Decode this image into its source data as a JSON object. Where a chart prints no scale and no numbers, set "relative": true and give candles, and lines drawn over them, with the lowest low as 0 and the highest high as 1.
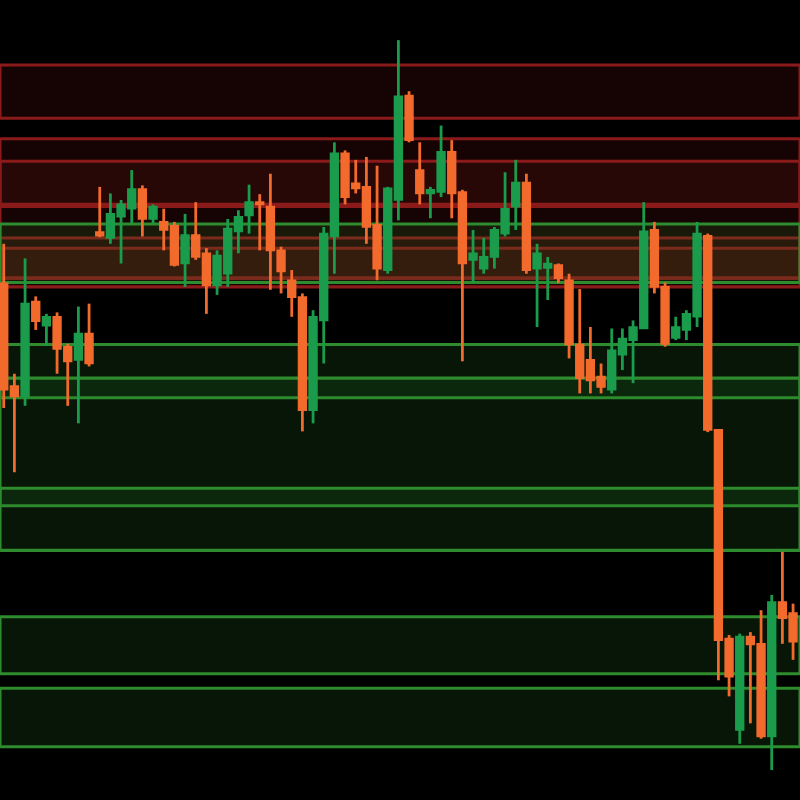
{
  "chart_data": {
    "type": "candlestick",
    "relative": true,
    "categories": [
      null,
      null,
      null,
      null,
      null,
      null,
      null,
      null,
      null,
      null,
      null,
      null,
      null,
      null,
      null,
      null,
      null,
      null,
      null,
      null,
      null,
      null,
      null,
      null,
      null,
      null,
      null,
      null,
      null,
      null,
      null,
      null,
      null,
      null,
      null,
      null,
      null,
      null,
      null,
      null,
      null,
      null,
      null,
      null,
      null,
      null,
      null,
      null,
      null,
      null,
      null,
      null,
      null,
      null,
      null,
      null,
      null,
      null,
      null,
      null,
      null,
      null,
      null,
      null,
      null,
      null,
      null,
      null,
      null,
      null,
      null,
      null,
      null,
      null,
      null
    ],
    "ohlc": [
      [
        0.667,
        0.721,
        0.496,
        0.521
      ],
      [
        0.526,
        0.543,
        0.408,
        0.512
      ],
      [
        0.512,
        0.701,
        0.499,
        0.639
      ],
      [
        0.642,
        0.649,
        0.603,
        0.615
      ],
      [
        0.609,
        0.625,
        0.581,
        0.621
      ],
      [
        0.621,
        0.627,
        0.543,
        0.577
      ],
      [
        0.58,
        0.584,
        0.499,
        0.56
      ],
      [
        0.562,
        0.635,
        0.475,
        0.598
      ],
      [
        0.598,
        0.639,
        0.553,
        0.557
      ],
      [
        0.737,
        0.799,
        0.73,
        0.732
      ],
      [
        0.729,
        0.79,
        0.721,
        0.762
      ],
      [
        0.758,
        0.781,
        0.694,
        0.775
      ],
      [
        0.769,
        0.822,
        0.749,
        0.796
      ],
      [
        0.796,
        0.801,
        0.731,
        0.755
      ],
      [
        0.755,
        0.775,
        0.749,
        0.772
      ],
      [
        0.751,
        0.769,
        0.712,
        0.74
      ],
      [
        0.746,
        0.751,
        0.69,
        0.692
      ],
      [
        0.694,
        0.762,
        0.662,
        0.733
      ],
      [
        0.733,
        0.778,
        0.699,
        0.703
      ],
      [
        0.708,
        0.715,
        0.625,
        0.664
      ],
      [
        0.664,
        0.712,
        0.651,
        0.705
      ],
      [
        0.68,
        0.755,
        0.662,
        0.742
      ],
      [
        0.738,
        0.767,
        0.708,
        0.758
      ],
      [
        0.76,
        0.802,
        0.735,
        0.778
      ],
      [
        0.778,
        0.789,
        0.712,
        0.775
      ],
      [
        0.772,
        0.817,
        0.658,
        0.712
      ],
      [
        0.712,
        0.717,
        0.653,
        0.683
      ],
      [
        0.671,
        0.685,
        0.621,
        0.648
      ],
      [
        0.648,
        0.653,
        0.464,
        0.493
      ],
      [
        0.493,
        0.63,
        0.475,
        0.621
      ],
      [
        0.616,
        0.744,
        0.557,
        0.735
      ],
      [
        0.731,
        0.86,
        0.68,
        0.845
      ],
      [
        0.845,
        0.849,
        0.775,
        0.785
      ],
      [
        0.804,
        0.836,
        0.79,
        0.797
      ],
      [
        0.799,
        0.84,
        0.721,
        0.744
      ],
      [
        0.747,
        0.828,
        0.671,
        0.687
      ],
      [
        0.685,
        0.799,
        0.68,
        0.797
      ],
      [
        0.781,
        1.0,
        0.753,
        0.923
      ],
      [
        0.924,
        0.93,
        0.86,
        0.863
      ],
      [
        0.822,
        0.86,
        0.775,
        0.79
      ],
      [
        0.79,
        0.799,
        0.756,
        0.795
      ],
      [
        0.792,
        0.883,
        0.785,
        0.847
      ],
      [
        0.847,
        0.863,
        0.756,
        0.79
      ],
      [
        0.792,
        0.795,
        0.56,
        0.694
      ],
      [
        0.699,
        0.74,
        0.668,
        0.708
      ],
      [
        0.687,
        0.729,
        0.68,
        0.703
      ],
      [
        0.703,
        0.744,
        0.687,
        0.74
      ],
      [
        0.735,
        0.819,
        0.731,
        0.769
      ],
      [
        0.772,
        0.836,
        0.74,
        0.805
      ],
      [
        0.805,
        0.817,
        0.68,
        0.685
      ],
      [
        0.687,
        0.721,
        0.607,
        0.708
      ],
      [
        0.688,
        0.703,
        0.644,
        0.694
      ],
      [
        0.692,
        0.694,
        0.667,
        0.674
      ],
      [
        0.671,
        0.68,
        0.564,
        0.583
      ],
      [
        0.583,
        0.659,
        0.516,
        0.537
      ],
      [
        0.562,
        0.607,
        0.516,
        0.534
      ],
      [
        0.539,
        0.557,
        0.516,
        0.525
      ],
      [
        0.521,
        0.605,
        0.516,
        0.575
      ],
      [
        0.569,
        0.605,
        0.548,
        0.591
      ],
      [
        0.589,
        0.616,
        0.53,
        0.607
      ],
      [
        0.605,
        0.778,
        0.605,
        0.738
      ],
      [
        0.74,
        0.751,
        0.653,
        0.662
      ],
      [
        0.662,
        0.668,
        0.58,
        0.584
      ],
      [
        0.592,
        0.621,
        0.589,
        0.607
      ],
      [
        0.603,
        0.63,
        0.589,
        0.625
      ],
      [
        0.621,
        0.751,
        0.607,
        0.735
      ],
      [
        0.732,
        0.735,
        0.463,
        0.466
      ],
      [
        0.466,
        0.466,
        0.123,
        0.178
      ],
      [
        0.18,
        0.185,
        0.101,
        0.128
      ],
      [
        0.055,
        0.187,
        0.036,
        0.183
      ],
      [
        0.183,
        0.189,
        0.064,
        0.172
      ],
      [
        0.173,
        0.219,
        0.043,
        0.046
      ],
      [
        0.046,
        0.24,
        0.0,
        0.23
      ],
      [
        0.23,
        0.299,
        0.173,
        0.208
      ],
      [
        0.215,
        0.228,
        0.151,
        0.176
      ]
    ],
    "colors": [
      "#f26a2c",
      "#f26a2c",
      "#1a9c4c",
      "#f26a2c",
      "#1a9c4c",
      "#f26a2c",
      "#f26a2c",
      "#1a9c4c",
      "#f26a2c",
      "#f26a2c",
      "#1a9c4c",
      "#1a9c4c",
      "#1a9c4c",
      "#f26a2c",
      "#1a9c4c",
      "#f26a2c",
      "#f26a2c",
      "#1a9c4c",
      "#f26a2c",
      "#f26a2c",
      "#1a9c4c",
      "#1a9c4c",
      "#1a9c4c",
      "#1a9c4c",
      "#f26a2c",
      "#f26a2c",
      "#f26a2c",
      "#f26a2c",
      "#f26a2c",
      "#1a9c4c",
      "#1a9c4c",
      "#1a9c4c",
      "#f26a2c",
      "#f26a2c",
      "#f26a2c",
      "#f26a2c",
      "#1a9c4c",
      "#1a9c4c",
      "#f26a2c",
      "#f26a2c",
      "#1a9c4c",
      "#1a9c4c",
      "#f26a2c",
      "#f26a2c",
      "#1a9c4c",
      "#1a9c4c",
      "#1a9c4c",
      "#1a9c4c",
      "#1a9c4c",
      "#f26a2c",
      "#1a9c4c",
      "#1a9c4c",
      "#f26a2c",
      "#f26a2c",
      "#f26a2c",
      "#f26a2c",
      "#f26a2c",
      "#1a9c4c",
      "#1a9c4c",
      "#1a9c4c",
      "#1a9c4c",
      "#f26a2c",
      "#f26a2c",
      "#1a9c4c",
      "#1a9c4c",
      "#1a9c4c",
      "#f26a2c",
      "#f26a2c",
      "#f26a2c",
      "#1a9c4c",
      "#f26a2c",
      "#f26a2c",
      "#1a9c4c",
      "#f26a2c",
      "#f26a2c"
    ],
    "bands": [
      {
        "axis": "y",
        "from": 0.893,
        "to": 0.966,
        "color": "#8b1a1a"
      },
      {
        "axis": "y",
        "from": 0.772,
        "to": 0.865,
        "color": "#8b1a1a"
      },
      {
        "axis": "y",
        "from": 0.772,
        "to": 0.834,
        "color": "#8b1a1a"
      },
      {
        "axis": "y",
        "from": 0.662,
        "to": 0.775,
        "color": "#8b1a1a"
      },
      {
        "axis": "y",
        "from": 0.674,
        "to": 0.729,
        "color": "#8b1a1a"
      },
      {
        "axis": "y",
        "from": 0.674,
        "to": 0.715,
        "color": "#8b1a1a"
      },
      {
        "axis": "y",
        "from": 0.668,
        "to": 0.748,
        "color": "#2e8b2e"
      },
      {
        "axis": "y",
        "from": 0.51,
        "to": 0.583,
        "color": "#2e8b2e"
      },
      {
        "axis": "y",
        "from": 0.362,
        "to": 0.537,
        "color": "#2e8b2e"
      },
      {
        "axis": "y",
        "from": 0.301,
        "to": 0.386,
        "color": "#2e8b2e"
      },
      {
        "axis": "y",
        "from": 0.132,
        "to": 0.21,
        "color": "#2e8b2e"
      },
      {
        "axis": "y",
        "from": 0.032,
        "to": 0.112,
        "color": "#2e8b2e"
      }
    ]
  }
}
